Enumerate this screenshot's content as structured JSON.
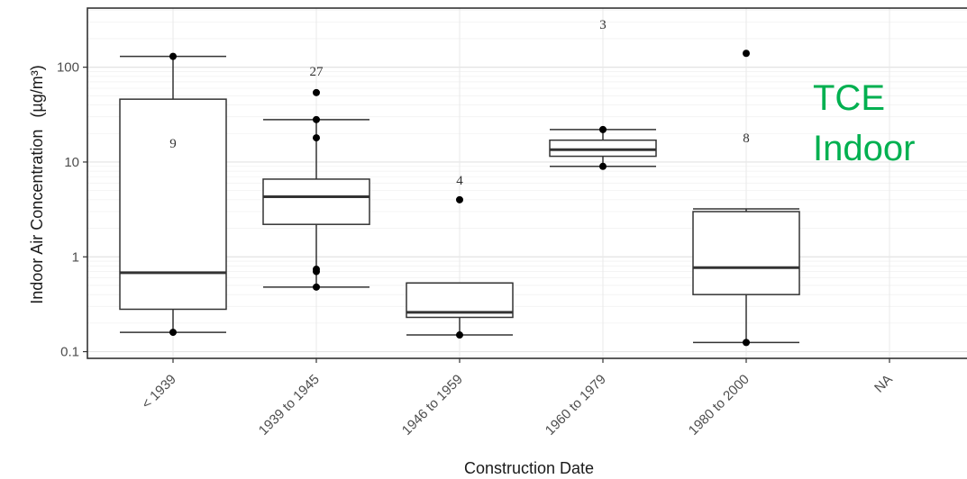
{
  "chart_data": {
    "type": "box",
    "xlabel": "Construction Date",
    "ylabel": "Indoor Air Concentration",
    "ylabel_unit": "(µg/m³)",
    "y_scale": "log10",
    "ylim": [
      0.085,
      420
    ],
    "yticks": [
      0.1,
      1,
      10,
      100
    ],
    "ytick_labels": [
      "0.1",
      "1",
      "10",
      "100"
    ],
    "grid": true,
    "categories": [
      "< 1939",
      "1939 to 1945",
      "1946 to 1959",
      "1960 to 1979",
      "1980 to 2000",
      "NA"
    ],
    "boxes": [
      {
        "category": "< 1939",
        "n": "9",
        "whisker_low": 0.16,
        "q1": 0.28,
        "median": 0.68,
        "q3": 46,
        "whisker_high": 130,
        "points": [
          130,
          0.16
        ]
      },
      {
        "category": "1939 to 1945",
        "n": "27",
        "whisker_low": 0.48,
        "q1": 2.2,
        "median": 4.3,
        "q3": 6.6,
        "whisker_high": 28,
        "points": [
          54,
          28,
          18,
          0.74,
          0.7,
          0.48
        ]
      },
      {
        "category": "1946 to 1959",
        "n": "4",
        "whisker_low": 0.15,
        "q1": 0.23,
        "median": 0.26,
        "q3": 0.53,
        "whisker_high": 0.53,
        "points": [
          4,
          0.15
        ]
      },
      {
        "category": "1960 to 1979",
        "n": "3",
        "whisker_low": 9,
        "q1": 11.5,
        "median": 13.5,
        "q3": 17,
        "whisker_high": 22,
        "points": [
          22,
          9
        ]
      },
      {
        "category": "1980 to 2000",
        "n": "8",
        "whisker_low": 0.125,
        "q1": 0.4,
        "median": 0.77,
        "q3": 3.0,
        "whisker_high": 3.2,
        "points": [
          140,
          0.125
        ]
      },
      {
        "category": "NA",
        "n": "",
        "whisker_low": null,
        "q1": null,
        "median": null,
        "q3": null,
        "whisker_high": null,
        "points": []
      }
    ]
  },
  "overlay": {
    "line1": "TCE",
    "line2": "Indoor",
    "color": "#00b050"
  },
  "colors": {
    "panel_border": "#333333",
    "grid": "#ebebeb",
    "box": "#333333",
    "point": "#000000"
  }
}
